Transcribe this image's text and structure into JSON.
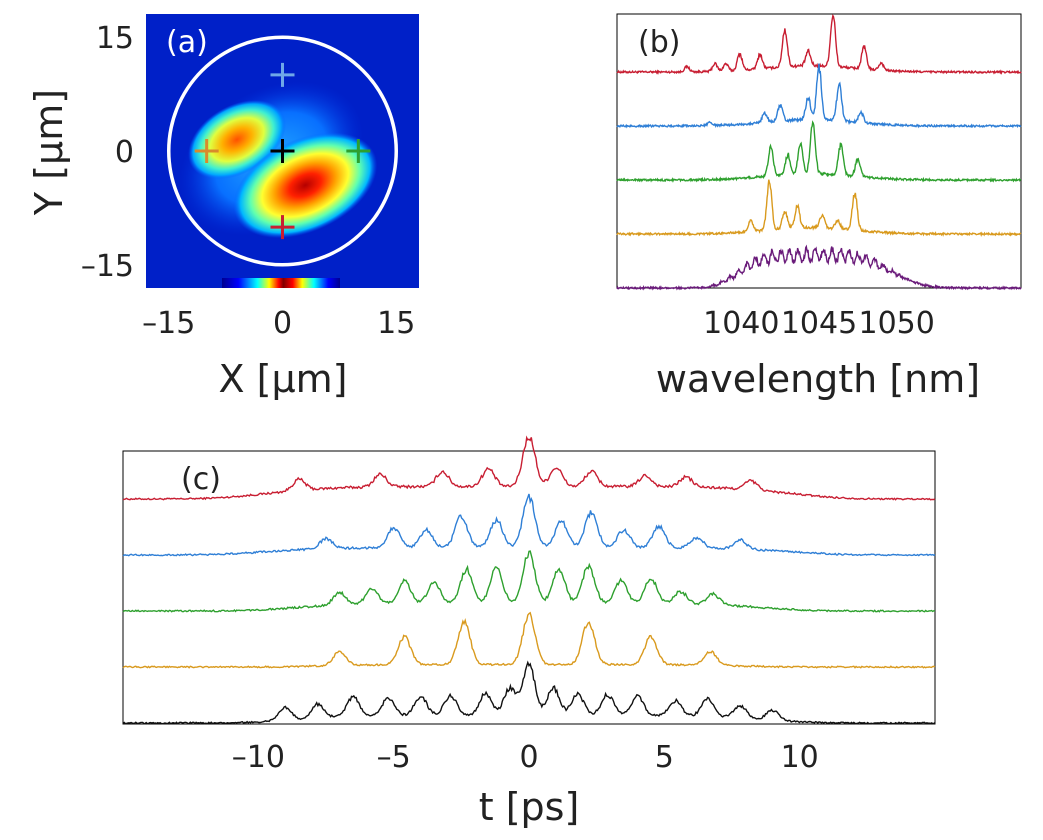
{
  "chart_data": [
    {
      "type": "heatmap",
      "panel_label": "(a)",
      "xlabel": "X [μm]",
      "ylabel": "Y [μm]",
      "xlim": [
        -18,
        18
      ],
      "ylim": [
        -18,
        18
      ],
      "xticks": [
        -15,
        0,
        15
      ],
      "yticks": [
        15,
        0,
        -15
      ],
      "xtick_labels": [
        "–15",
        "0",
        "15"
      ],
      "ytick_labels": [
        "15",
        "0",
        "–15"
      ],
      "colormap": "jet",
      "fiber_core_radius_um": 15,
      "lobes": [
        {
          "x": -6,
          "y": 1.5,
          "rx": 4.5,
          "ry": 2.8,
          "angle_deg": -30,
          "peak": 0.78
        },
        {
          "x": 3,
          "y": -4.5,
          "rx": 6.5,
          "ry": 3.8,
          "angle_deg": -25,
          "peak": 1.0
        }
      ],
      "markers": [
        {
          "x": 0,
          "y": 10,
          "color": "#6fa8e8"
        },
        {
          "x": -10,
          "y": 0,
          "color": "#d98a2b"
        },
        {
          "x": 0,
          "y": 0,
          "color": "#000000"
        },
        {
          "x": 10,
          "y": 0,
          "color": "#2ea02e"
        },
        {
          "x": 0,
          "y": -10,
          "color": "#c81e32"
        }
      ]
    },
    {
      "type": "line",
      "panel_label": "(b)",
      "xlabel": "wavelength [nm]",
      "ylabel": "",
      "xlim": [
        1032,
        1058
      ],
      "xticks": [
        1040,
        1045,
        1050
      ],
      "xtick_labels": [
        "1040",
        "1045",
        "1050"
      ],
      "series": [
        {
          "name": "red",
          "color": "#c81e32",
          "offset": 4,
          "peaks": [
            [
              1036.5,
              0.1
            ],
            [
              1038.3,
              0.15
            ],
            [
              1039,
              0.14
            ],
            [
              1039.9,
              0.32
            ],
            [
              1041.2,
              0.28
            ],
            [
              1042.8,
              0.72
            ],
            [
              1044.3,
              0.28
            ],
            [
              1045.9,
              1.0
            ],
            [
              1047.9,
              0.42
            ],
            [
              1049,
              0.14
            ]
          ]
        },
        {
          "name": "blue",
          "color": "#2f7fd6",
          "offset": 3,
          "peaks": [
            [
              1038,
              0.06
            ],
            [
              1041.5,
              0.18
            ],
            [
              1042.5,
              0.3
            ],
            [
              1044.3,
              0.42
            ],
            [
              1045,
              1.0
            ],
            [
              1046.3,
              0.7
            ],
            [
              1047.7,
              0.2
            ]
          ]
        },
        {
          "name": "green",
          "color": "#2ea02e",
          "offset": 2,
          "peaks": [
            [
              1041.9,
              0.55
            ],
            [
              1043,
              0.38
            ],
            [
              1043.8,
              0.56
            ],
            [
              1044.6,
              1.0
            ],
            [
              1046.4,
              0.58
            ],
            [
              1047.5,
              0.34
            ]
          ]
        },
        {
          "name": "orange",
          "color": "#d99a1e",
          "offset": 1,
          "peaks": [
            [
              1040.6,
              0.2
            ],
            [
              1041.8,
              0.95
            ],
            [
              1042.8,
              0.34
            ],
            [
              1043.6,
              0.42
            ],
            [
              1045.2,
              0.24
            ],
            [
              1046.2,
              0.16
            ],
            [
              1047.3,
              0.72
            ]
          ]
        },
        {
          "name": "purple",
          "color": "#6a1b7a",
          "offset": 0,
          "band": [
            1039.5,
            1049.0
          ],
          "band_level": 0.75,
          "comb_center": 1044.2,
          "comb_spacing": 0.55
        }
      ]
    },
    {
      "type": "line",
      "panel_label": "(c)",
      "xlabel": "t [ps]",
      "ylabel": "",
      "xlim": [
        -15,
        15
      ],
      "xticks": [
        -10,
        -5,
        0,
        5,
        10
      ],
      "xtick_labels": [
        "–10",
        "–5",
        "0",
        "5",
        "10"
      ],
      "series": [
        {
          "name": "red",
          "color": "#c81e32",
          "offset": 4,
          "envelope_width": 10,
          "background": 0.25,
          "peaks": [
            [
              -8.5,
              0.22
            ],
            [
              -5.5,
              0.25
            ],
            [
              -3.2,
              0.3
            ],
            [
              -1.5,
              0.35
            ],
            [
              0,
              1.0
            ],
            [
              1,
              0.38
            ],
            [
              2.3,
              0.3
            ],
            [
              4.3,
              0.22
            ],
            [
              5.8,
              0.2
            ],
            [
              8.2,
              0.18
            ]
          ]
        },
        {
          "name": "blue",
          "color": "#2f7fd6",
          "offset": 3,
          "envelope_width": 10,
          "background": 0.15,
          "peaks": [
            [
              -7.5,
              0.2
            ],
            [
              -5,
              0.4
            ],
            [
              -3.8,
              0.35
            ],
            [
              -2.5,
              0.62
            ],
            [
              -1.2,
              0.55
            ],
            [
              0,
              1.0
            ],
            [
              1.2,
              0.52
            ],
            [
              2.3,
              0.7
            ],
            [
              3.5,
              0.35
            ],
            [
              4.8,
              0.42
            ],
            [
              6.2,
              0.2
            ],
            [
              7.8,
              0.18
            ]
          ]
        },
        {
          "name": "green",
          "color": "#2ea02e",
          "offset": 2,
          "envelope_width": 9,
          "background": 0.15,
          "peaks": [
            [
              -7,
              0.25
            ],
            [
              -5.8,
              0.3
            ],
            [
              -4.6,
              0.45
            ],
            [
              -3.5,
              0.42
            ],
            [
              -2.3,
              0.68
            ],
            [
              -1.2,
              0.7
            ],
            [
              0,
              1.0
            ],
            [
              1.1,
              0.7
            ],
            [
              2.2,
              0.75
            ],
            [
              3.4,
              0.45
            ],
            [
              4.5,
              0.5
            ],
            [
              5.6,
              0.25
            ],
            [
              6.8,
              0.22
            ]
          ]
        },
        {
          "name": "orange",
          "color": "#d99a1e",
          "offset": 1,
          "envelope_width": 8,
          "background": 0.05,
          "peaks": [
            [
              -7,
              0.28
            ],
            [
              -4.6,
              0.55
            ],
            [
              -2.4,
              0.85
            ],
            [
              0,
              1.0
            ],
            [
              2.2,
              0.85
            ],
            [
              4.5,
              0.55
            ],
            [
              6.7,
              0.28
            ]
          ]
        },
        {
          "name": "black",
          "color": "#111111",
          "offset": 0,
          "envelope_width": 9,
          "background": 0.15,
          "peaks": [
            [
              -9,
              0.25
            ],
            [
              -7.8,
              0.28
            ],
            [
              -6.5,
              0.4
            ],
            [
              -5.2,
              0.35
            ],
            [
              -4,
              0.38
            ],
            [
              -2.9,
              0.4
            ],
            [
              -1.6,
              0.45
            ],
            [
              -0.7,
              0.55
            ],
            [
              0,
              1.0
            ],
            [
              0.9,
              0.55
            ],
            [
              1.8,
              0.42
            ],
            [
              2.9,
              0.42
            ],
            [
              4,
              0.38
            ],
            [
              5.4,
              0.3
            ],
            [
              6.6,
              0.35
            ],
            [
              7.8,
              0.25
            ],
            [
              9,
              0.2
            ]
          ]
        }
      ]
    }
  ]
}
